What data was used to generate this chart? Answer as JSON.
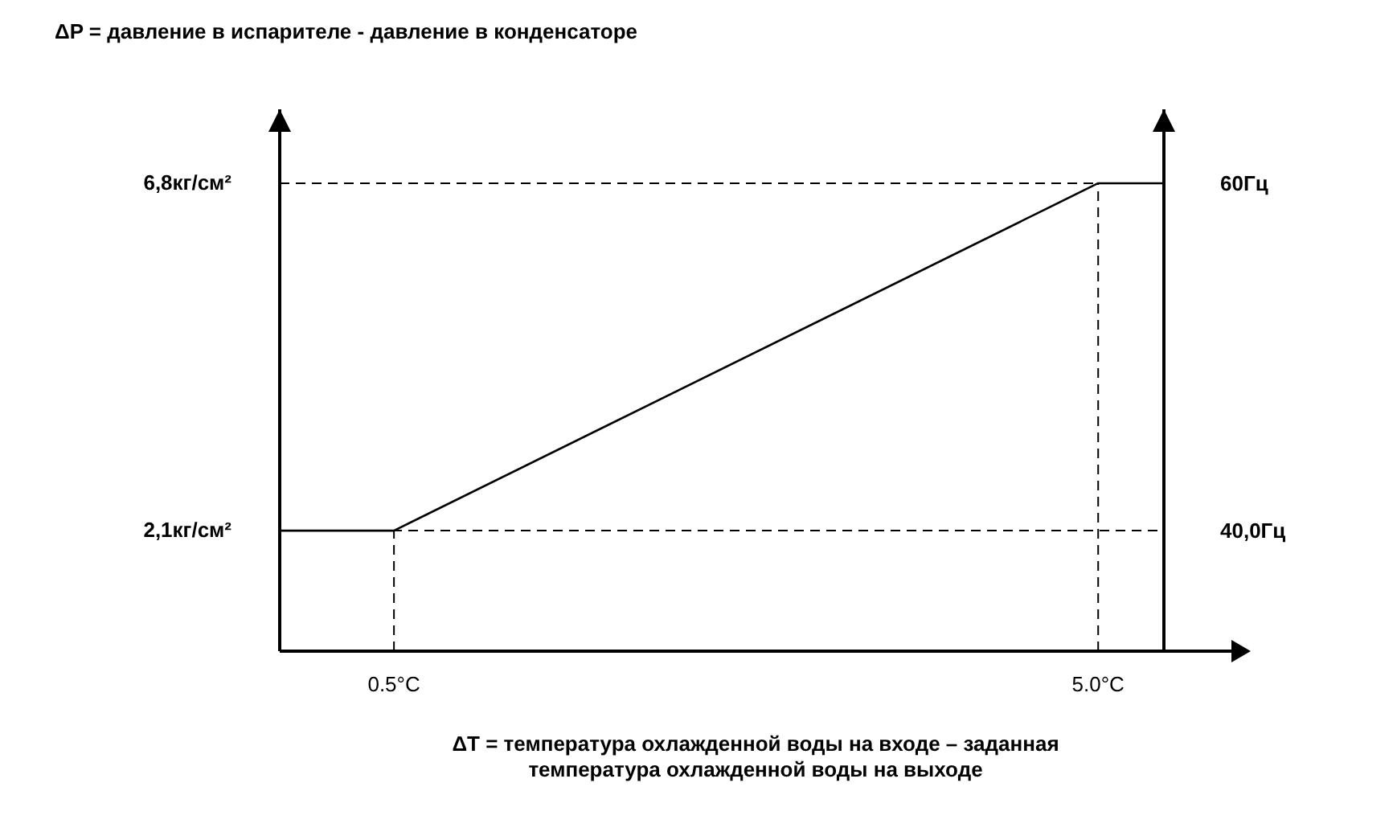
{
  "chart_data": {
    "type": "line",
    "title": "ΔP = давление в испарителе - давление в конденсаторе",
    "xlabel": "ΔT = температура охлажденной воды на входе – заданная температура охлажденной воды на выходе",
    "x": [
      -0.23,
      0.5,
      5.0,
      5.42
    ],
    "series": [
      {
        "color": "#000000",
        "values": [
          2.1,
          2.1,
          6.8,
          6.8
        ]
      }
    ],
    "xlim": [
      -0.23,
      5.42
    ],
    "xticks": [
      {
        "value": 0.5,
        "label": "0.5°C"
      },
      {
        "value": 5.0,
        "label": "5.0°C"
      }
    ],
    "ylim": [
      0.47,
      7.8
    ],
    "yticks": [
      {
        "value": 2.1,
        "label": "2,1кг/см²"
      },
      {
        "value": 6.8,
        "label": "6,8кг/см²"
      }
    ],
    "y2lim": [
      33.1,
      64.3
    ],
    "y2ticks": [
      {
        "value": 40,
        "label": "40,0Гц"
      },
      {
        "value": 60,
        "label": "60Гц"
      }
    ],
    "ref_lines": [
      {
        "axis": "y",
        "value": 2.1,
        "line_style": "dashed"
      },
      {
        "axis": "y",
        "value": 6.8,
        "line_style": "dashed"
      },
      {
        "axis": "x",
        "value": 0.5,
        "line_style": "dashed"
      },
      {
        "axis": "x",
        "value": 5.0,
        "line_style": "dashed"
      }
    ],
    "grid": false,
    "marker": "none",
    "line_style": "solid"
  }
}
